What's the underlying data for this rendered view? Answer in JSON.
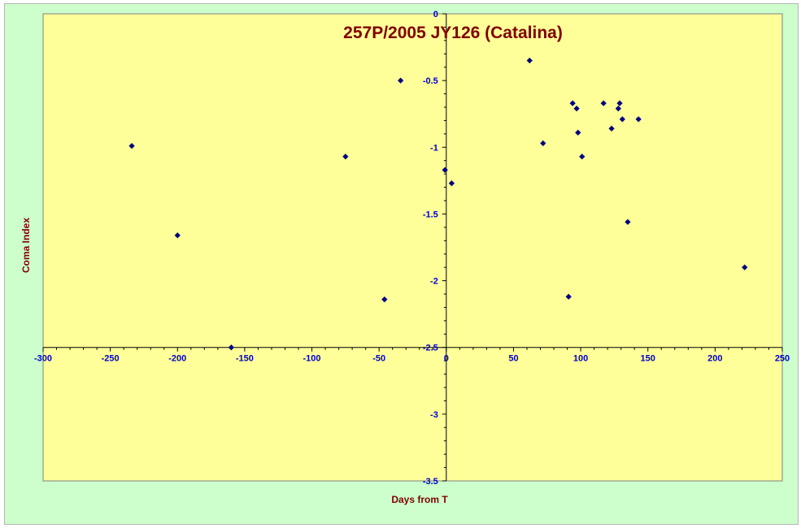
{
  "chart_data": {
    "type": "scatter",
    "title": "257P/2005 JY126 (Catalina)",
    "xlabel": "Days from T",
    "ylabel": "Coma Index",
    "xlim": [
      -300,
      250
    ],
    "ylim": [
      -3.5,
      0
    ],
    "x_ticks": [
      -300,
      -250,
      -200,
      -150,
      -100,
      -50,
      0,
      50,
      100,
      150,
      200,
      250
    ],
    "y_ticks": [
      0,
      -0.5,
      -1,
      -1.5,
      -2,
      -2.5,
      -3,
      -3.5
    ],
    "x_tick_labels": [
      "-300",
      "-250",
      "-200",
      "-150",
      "-100",
      "-50",
      "0",
      "50",
      "100",
      "150",
      "200",
      "250"
    ],
    "y_tick_labels": [
      "0",
      "-0.5",
      "-1",
      "-1.5",
      "-2",
      "-2.5",
      "-3",
      "-3.5"
    ],
    "x_axis_crosses_y": -2.5,
    "y_axis_crosses_x": 0,
    "grid": false,
    "marker_color": "#000080",
    "plot_background": "#ffff99",
    "chart_background": "#ccffcc",
    "points": [
      {
        "x": -234,
        "y": -0.99
      },
      {
        "x": -200,
        "y": -1.66
      },
      {
        "x": -160,
        "y": -2.5
      },
      {
        "x": -75,
        "y": -1.07
      },
      {
        "x": -46,
        "y": -2.14
      },
      {
        "x": -34,
        "y": -0.5
      },
      {
        "x": -1,
        "y": -1.17
      },
      {
        "x": 4,
        "y": -1.27
      },
      {
        "x": 62,
        "y": -0.35
      },
      {
        "x": 72,
        "y": -0.97
      },
      {
        "x": 91,
        "y": -2.12
      },
      {
        "x": 94,
        "y": -0.67
      },
      {
        "x": 97,
        "y": -0.71
      },
      {
        "x": 98,
        "y": -0.89
      },
      {
        "x": 101,
        "y": -1.07
      },
      {
        "x": 117,
        "y": -0.67
      },
      {
        "x": 123,
        "y": -0.86
      },
      {
        "x": 128,
        "y": -0.71
      },
      {
        "x": 129,
        "y": -0.67
      },
      {
        "x": 131,
        "y": -0.79
      },
      {
        "x": 135,
        "y": -1.56
      },
      {
        "x": 143,
        "y": -0.79
      },
      {
        "x": 222,
        "y": -1.9
      }
    ]
  }
}
